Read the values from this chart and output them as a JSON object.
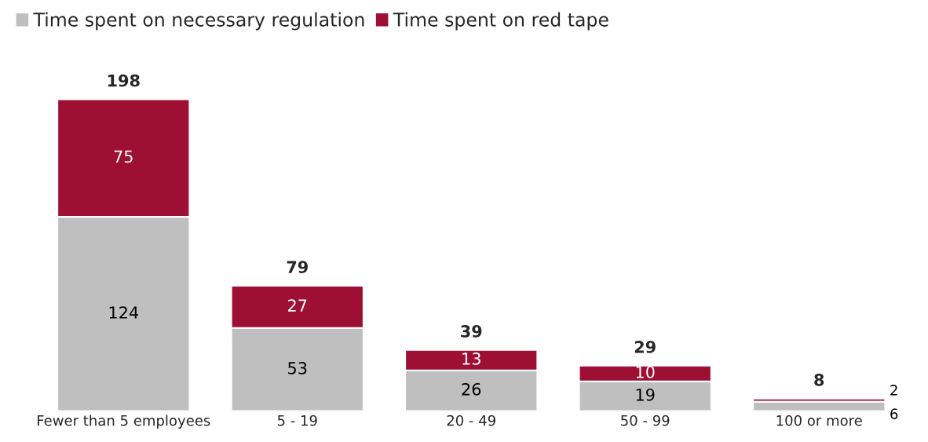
{
  "chart_data": {
    "type": "bar",
    "stacked": true,
    "data_labels": true,
    "legend": "top left",
    "grid": false,
    "categories": [
      "Fewer than 5 employees",
      "5 - 19",
      "20 - 49",
      "50 - 99",
      "100 or more"
    ],
    "series": [
      {
        "name": "Time spent on necessary regulation",
        "color": "#bfbfbf",
        "values": [
          124,
          53,
          26,
          19,
          6
        ]
      },
      {
        "name": "Time spent on red tape",
        "color": "#9e0f34",
        "values": [
          75,
          27,
          13,
          10,
          2
        ]
      }
    ],
    "totals": [
      "198",
      "79",
      "39",
      "29",
      "8"
    ]
  }
}
